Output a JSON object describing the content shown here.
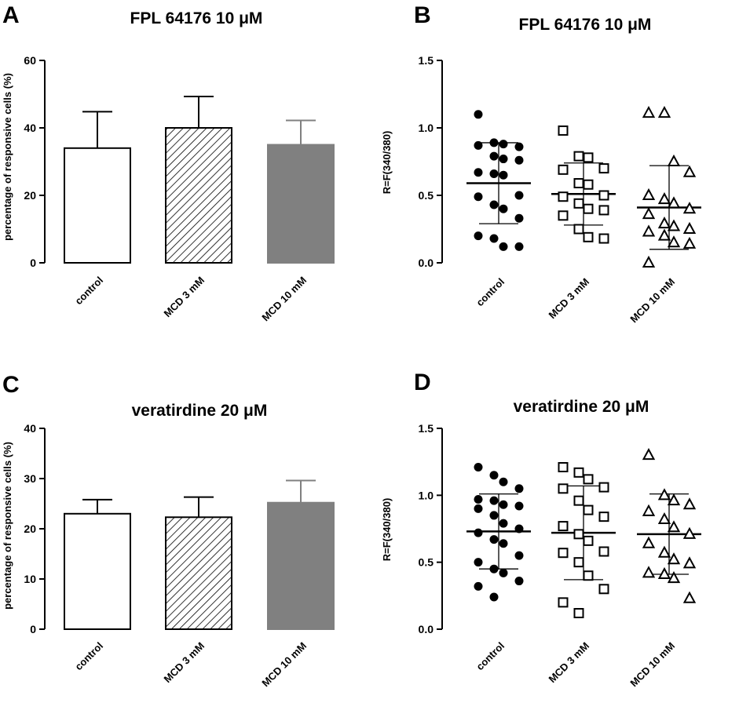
{
  "chart_data": [
    {
      "panel": "A",
      "type": "bar",
      "title": "FPL 64176 10 μM",
      "ylabel": "percentage of responsive cells (%)",
      "ylim": [
        0,
        60
      ],
      "yticks": [
        "0",
        "20",
        "40",
        "60"
      ],
      "categories": [
        "control",
        "MCD 3 mM",
        "MCD 10 mM"
      ],
      "values": [
        34,
        40,
        35
      ],
      "errors": [
        10.8,
        9.3,
        7.2
      ],
      "fills": [
        "#ffffff",
        "hatch",
        "#808080"
      ]
    },
    {
      "panel": "B",
      "type": "scatter",
      "title": "FPL 64176 10 μM",
      "ylabel": "R=F(340/380)",
      "ylim": [
        0,
        1.5
      ],
      "yticks": [
        "0.0",
        "0.5",
        "1.0",
        "1.5"
      ],
      "categories": [
        "control",
        "MCD 3 mM",
        "MCD 10 mM"
      ],
      "markers": [
        "circle",
        "square",
        "triangle"
      ],
      "means": [
        0.59,
        0.51,
        0.41
      ],
      "sds": [
        0.3,
        0.23,
        0.31
      ],
      "points": [
        [
          1.1,
          0.89,
          0.88,
          0.86,
          0.87,
          0.79,
          0.77,
          0.76,
          0.67,
          0.66,
          0.65,
          0.5,
          0.49,
          0.43,
          0.4,
          0.33,
          0.2,
          0.18,
          0.12,
          0.12
        ],
        [
          0.98,
          0.79,
          0.78,
          0.7,
          0.69,
          0.59,
          0.58,
          0.5,
          0.49,
          0.44,
          0.4,
          0.39,
          0.35,
          0.25,
          0.19,
          0.18
        ],
        [
          1.11,
          1.11,
          0.75,
          0.67,
          0.5,
          0.47,
          0.44,
          0.4,
          0.36,
          0.29,
          0.27,
          0.25,
          0.23,
          0.2,
          0.15,
          0.14,
          0.0
        ]
      ]
    },
    {
      "panel": "C",
      "type": "bar",
      "title": "veratirdine 20 μM",
      "ylabel": "percentage of responsive cells (%)",
      "ylim": [
        0,
        40
      ],
      "yticks": [
        "0",
        "10",
        "20",
        "30",
        "40"
      ],
      "categories": [
        "control",
        "MCD 3 mM",
        "MCD 10 mM"
      ],
      "values": [
        23,
        22.3,
        25.2
      ],
      "errors": [
        2.8,
        4.0,
        4.4
      ],
      "fills": [
        "#ffffff",
        "hatch",
        "#808080"
      ]
    },
    {
      "panel": "D",
      "type": "scatter",
      "title": "veratirdine 20 μM",
      "ylabel": "R=F(340/380)",
      "ylim": [
        0,
        1.5
      ],
      "yticks": [
        "0.0",
        "0.5",
        "1.0",
        "1.5"
      ],
      "categories": [
        "control",
        "MCD 3 mM",
        "MCD 10 mM"
      ],
      "markers": [
        "circle",
        "square",
        "triangle"
      ],
      "means": [
        0.73,
        0.72,
        0.71
      ],
      "sds": [
        0.28,
        0.35,
        0.3
      ],
      "points": [
        [
          1.21,
          1.15,
          1.1,
          1.05,
          0.97,
          0.96,
          0.93,
          0.92,
          0.9,
          0.85,
          0.79,
          0.75,
          0.72,
          0.67,
          0.64,
          0.55,
          0.5,
          0.45,
          0.42,
          0.36,
          0.32,
          0.24
        ],
        [
          1.21,
          1.17,
          1.12,
          1.06,
          1.05,
          0.96,
          0.89,
          0.84,
          0.77,
          0.71,
          0.66,
          0.58,
          0.57,
          0.5,
          0.4,
          0.3,
          0.2,
          0.12
        ],
        [
          1.3,
          1.0,
          0.96,
          0.93,
          0.88,
          0.82,
          0.76,
          0.71,
          0.64,
          0.57,
          0.52,
          0.49,
          0.42,
          0.41,
          0.38,
          0.23
        ]
      ]
    }
  ]
}
